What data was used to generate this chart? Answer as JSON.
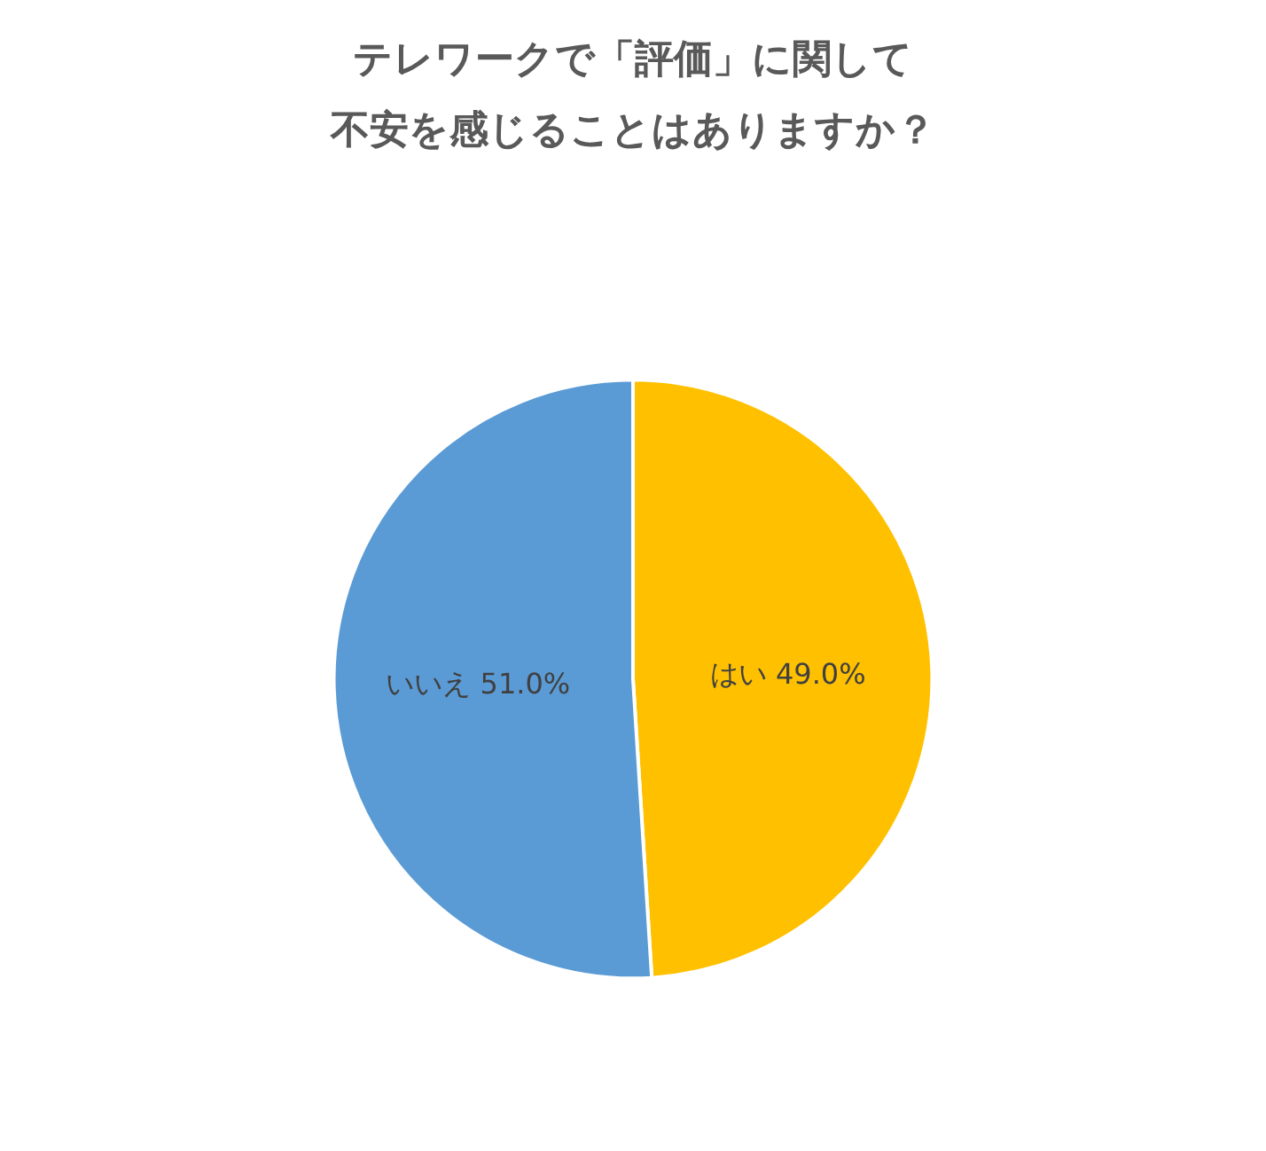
{
  "chart_data": {
    "type": "pie",
    "title": "テレワークで「評価」に関して",
    "subtitle": "不安を感じることはありますか？",
    "categories": [
      "はい",
      "いいえ"
    ],
    "values": [
      49.0,
      51.0
    ],
    "value_labels": [
      "49.0%",
      "51.0%"
    ],
    "colors": [
      "#ffc000",
      "#5b9bd5"
    ],
    "legend": false
  }
}
